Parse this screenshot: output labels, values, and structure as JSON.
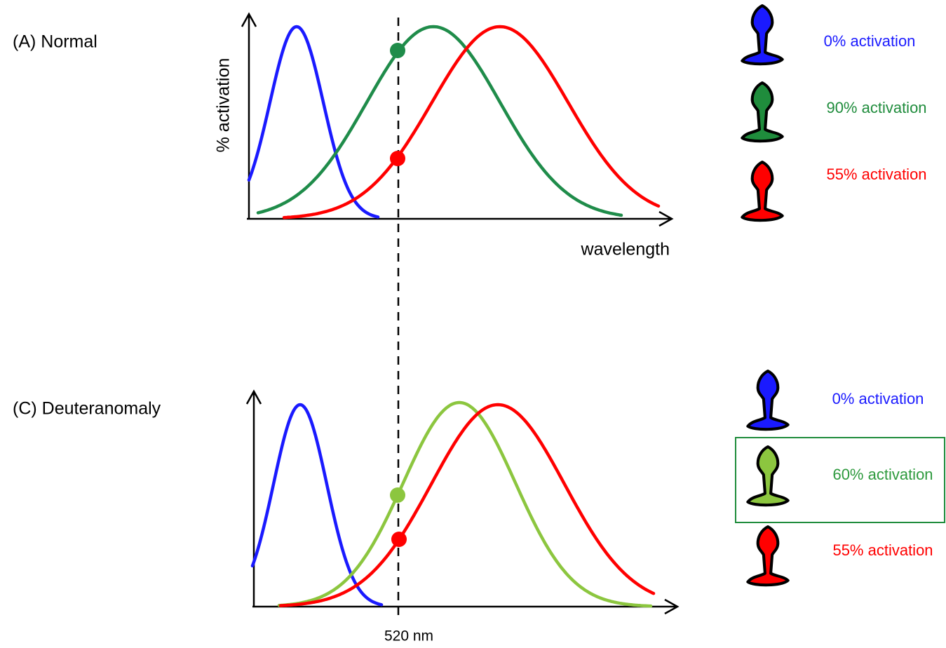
{
  "panels": [
    {
      "label": "(A) Normal",
      "y_axis_label": "% activation",
      "x_axis_label": "wavelength",
      "cones": [
        "0% activation",
        "90% activation",
        "55% activation"
      ]
    },
    {
      "label": "(C) Deuteranomaly",
      "cones": [
        "0% activation",
        "60% activation",
        "55% activation"
      ]
    }
  ],
  "marker_label": "520 nm"
}
